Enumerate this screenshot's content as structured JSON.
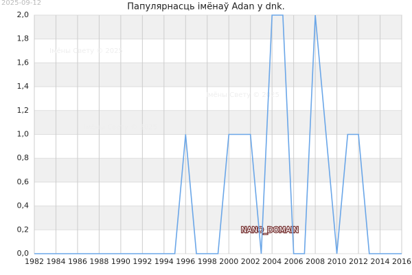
{
  "chart_data": {
    "type": "line",
    "title": "Папулярнасць імёнаў Adan у dnk.",
    "date_stamp": "2025-09-12",
    "watermarks": [
      "Імёны Свету © 2025",
      "Імёны Свету © 2025",
      "Імёны Свету © 2025"
    ],
    "domain_label": "NANO_DOMAIN",
    "x": [
      1982,
      1983,
      1984,
      1985,
      1986,
      1987,
      1988,
      1989,
      1990,
      1991,
      1992,
      1993,
      1994,
      1995,
      1996,
      1997,
      1998,
      1999,
      2000,
      2001,
      2002,
      2003,
      2004,
      2005,
      2006,
      2007,
      2008,
      2009,
      2010,
      2011,
      2012,
      2013,
      2014,
      2015,
      2016
    ],
    "series": [
      {
        "color": "#6aa6e8",
        "values": [
          0,
          0,
          0,
          0,
          0,
          0,
          0,
          0,
          0,
          0,
          0,
          0,
          0,
          0,
          1,
          0,
          0,
          0,
          1,
          1,
          1,
          0,
          2,
          2,
          0,
          0,
          2,
          1,
          0,
          1,
          1,
          0,
          0,
          0,
          0
        ]
      }
    ],
    "xlim": [
      1982,
      2016
    ],
    "xticks": [
      1982,
      1984,
      1986,
      1988,
      1990,
      1992,
      1994,
      1996,
      1998,
      2000,
      2002,
      2004,
      2006,
      2008,
      2010,
      2012,
      2014,
      2016
    ],
    "ylim": [
      0,
      2
    ],
    "yticks": [
      {
        "value": 0,
        "label": "0,0"
      },
      {
        "value": 0.2,
        "label": "0,2"
      },
      {
        "value": 0.4,
        "label": "0,4"
      },
      {
        "value": 0.6,
        "label": "0,6"
      },
      {
        "value": 0.8,
        "label": "0,8"
      },
      {
        "value": 1,
        "label": "1,0"
      },
      {
        "value": 1.2,
        "label": "1,2"
      },
      {
        "value": 1.4,
        "label": "1,4"
      },
      {
        "value": 1.6,
        "label": "1,6"
      },
      {
        "value": 1.8,
        "label": "1,8"
      },
      {
        "value": 2,
        "label": "2,0"
      }
    ],
    "grid": true
  }
}
